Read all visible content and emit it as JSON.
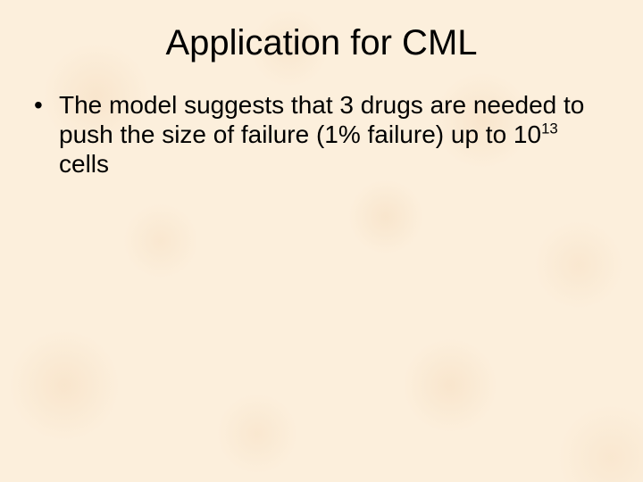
{
  "slide": {
    "background_color": "#fcefdc",
    "texture_accent_color": "#f5dcbe",
    "text_color": "#000000",
    "font_family": "Arial",
    "title": {
      "text": "Application for CML",
      "font_size_pt": 40,
      "align": "center",
      "weight": "normal"
    },
    "bullets": [
      {
        "text_before_sup": "The model suggests that 3 drugs are needed to push the size of failure (1% failure) up to 10",
        "sup": "13",
        "text_after_sup": " cells",
        "font_size_pt": 28
      }
    ]
  }
}
